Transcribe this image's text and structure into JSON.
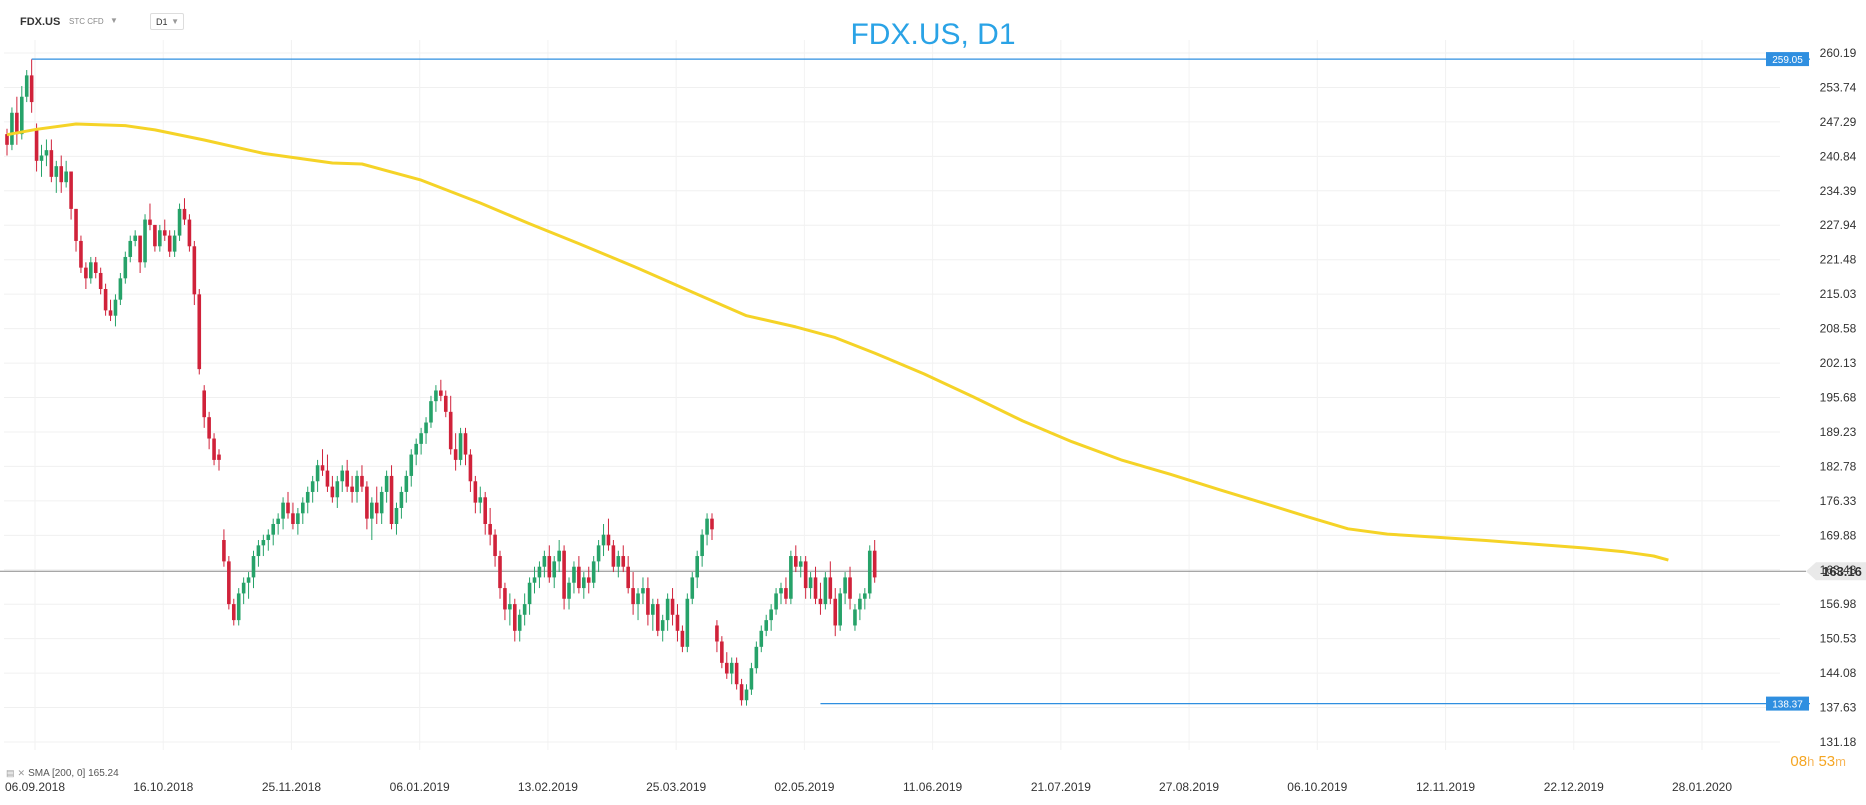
{
  "header": {
    "symbol": "FDX.US",
    "instrument_type": "STC CFD",
    "timeframe": "D1"
  },
  "title": "FDX.US, D1",
  "timer": {
    "hours": "08",
    "hours_unit": "h",
    "minutes": "53",
    "minutes_unit": "m"
  },
  "legend": {
    "label": "SMA [200, 0] 165.24"
  },
  "colors": {
    "up": "#26a269",
    "down": "#d0223a",
    "sma": "#f5d327",
    "hline": "#2f8fe0",
    "price_line": "#8a8a8a",
    "title": "#2aa3e6"
  },
  "chart_data": {
    "type": "candlestick",
    "title": "FDX.US, D1",
    "y_ticks": [
      "260.19",
      "253.74",
      "247.29",
      "240.84",
      "234.39",
      "227.94",
      "221.48",
      "215.03",
      "208.58",
      "202.13",
      "195.68",
      "189.23",
      "182.78",
      "176.33",
      "169.88",
      "163.43",
      "156.98",
      "150.53",
      "144.08",
      "137.63",
      "131.18"
    ],
    "ylim": [
      131.18,
      260.19
    ],
    "x_ticks": [
      "06.09.2018",
      "16.10.2018",
      "25.11.2018",
      "06.01.2019",
      "13.02.2019",
      "25.03.2019",
      "02.05.2019",
      "11.06.2019",
      "21.07.2019",
      "27.08.2019",
      "06.10.2019",
      "12.11.2019",
      "22.12.2019",
      "28.01.2020"
    ],
    "current_price": {
      "value": 163.16,
      "label": "163.16"
    },
    "horizontal_levels": [
      {
        "value": 259.05,
        "label": "259.05"
      },
      {
        "value": 138.37,
        "label": "138.37"
      }
    ],
    "sma": {
      "name": "SMA [200, 0]",
      "value": 165.24,
      "points": [
        [
          0,
          244.9
        ],
        [
          6,
          245.9
        ],
        [
          14,
          246.9
        ],
        [
          24,
          246.6
        ],
        [
          30,
          245.8
        ],
        [
          40,
          243.9
        ],
        [
          52,
          241.4
        ],
        [
          66,
          239.6
        ],
        [
          72,
          239.4
        ],
        [
          84,
          236.4
        ],
        [
          96,
          232.1
        ],
        [
          106,
          228.2
        ],
        [
          116,
          224.5
        ],
        [
          128,
          219.9
        ],
        [
          140,
          215.0
        ],
        [
          150,
          211.0
        ],
        [
          160,
          208.9
        ],
        [
          168,
          206.9
        ],
        [
          176,
          204.0
        ],
        [
          186,
          200.1
        ],
        [
          196,
          195.8
        ],
        [
          206,
          191.3
        ],
        [
          216,
          187.4
        ],
        [
          226,
          184.0
        ],
        [
          236,
          181.3
        ],
        [
          246,
          178.4
        ],
        [
          256,
          175.6
        ],
        [
          264,
          173.3
        ],
        [
          272,
          171.1
        ],
        [
          280,
          170.1
        ],
        [
          290,
          169.5
        ],
        [
          300,
          168.9
        ],
        [
          310,
          168.2
        ],
        [
          320,
          167.5
        ],
        [
          328,
          166.8
        ],
        [
          334,
          166.0
        ],
        [
          337,
          165.24
        ]
      ]
    },
    "candles": [
      [
        245,
        246,
        241,
        243
      ],
      [
        243,
        250,
        242,
        249
      ],
      [
        249,
        252,
        243,
        245
      ],
      [
        245,
        254,
        244,
        252
      ],
      [
        252,
        257,
        251,
        256
      ],
      [
        256,
        259,
        249,
        251
      ],
      [
        246,
        247,
        238,
        240
      ],
      [
        240,
        243,
        237,
        241
      ],
      [
        241,
        244,
        239,
        242
      ],
      [
        242,
        244,
        236,
        237
      ],
      [
        237,
        240,
        234,
        239
      ],
      [
        239,
        241,
        234,
        236
      ],
      [
        236,
        240,
        235,
        238
      ],
      [
        238,
        238,
        229,
        231
      ],
      [
        231,
        231,
        223,
        225
      ],
      [
        225,
        226,
        219,
        220
      ],
      [
        220,
        221,
        216,
        218
      ],
      [
        218,
        222,
        217,
        221
      ],
      [
        221,
        222,
        218,
        219
      ],
      [
        219,
        220,
        215,
        216
      ],
      [
        216,
        217,
        211,
        212
      ],
      [
        212,
        214,
        210,
        211
      ],
      [
        211,
        215,
        209,
        214
      ],
      [
        214,
        219,
        213,
        218
      ],
      [
        218,
        223,
        217,
        222
      ],
      [
        222,
        226,
        221,
        225
      ],
      [
        225,
        227,
        224,
        226
      ],
      [
        226,
        226,
        219,
        221
      ],
      [
        221,
        230,
        220,
        229
      ],
      [
        229,
        232,
        227,
        228
      ],
      [
        228,
        228,
        223,
        224
      ],
      [
        224,
        228,
        223,
        227
      ],
      [
        227,
        229,
        225,
        226
      ],
      [
        226,
        227,
        222,
        223
      ],
      [
        223,
        227,
        222,
        226
      ],
      [
        226,
        232,
        225,
        231
      ],
      [
        231,
        233,
        228,
        229
      ],
      [
        229,
        230,
        223,
        224
      ],
      [
        224,
        225,
        213,
        215
      ],
      [
        215,
        216,
        200,
        201
      ],
      [
        197,
        198,
        190,
        192
      ],
      [
        192,
        193,
        186,
        188
      ],
      [
        188,
        189,
        183,
        184
      ],
      [
        185,
        186,
        182,
        184
      ],
      [
        169,
        171,
        164,
        165
      ],
      [
        165,
        166,
        156,
        157
      ],
      [
        157,
        158,
        153,
        154
      ],
      [
        154,
        160,
        153,
        159
      ],
      [
        159,
        162,
        157,
        161
      ],
      [
        161,
        163,
        158,
        162
      ],
      [
        162,
        167,
        160,
        166
      ],
      [
        166,
        169,
        164,
        168
      ],
      [
        168,
        170,
        166,
        169
      ],
      [
        169,
        171,
        167,
        170
      ],
      [
        170,
        173,
        168,
        172
      ],
      [
        172,
        174,
        170,
        173
      ],
      [
        173,
        177,
        171,
        176
      ],
      [
        176,
        178,
        173,
        174
      ],
      [
        174,
        176,
        171,
        172
      ],
      [
        172,
        175,
        170,
        174
      ],
      [
        174,
        177,
        172,
        176
      ],
      [
        176,
        179,
        174,
        178
      ],
      [
        178,
        181,
        176,
        180
      ],
      [
        180,
        184,
        178,
        183
      ],
      [
        183,
        186,
        181,
        182
      ],
      [
        182,
        185,
        178,
        179
      ],
      [
        179,
        181,
        176,
        177
      ],
      [
        177,
        181,
        175,
        180
      ],
      [
        180,
        183,
        178,
        182
      ],
      [
        182,
        184,
        178,
        179
      ],
      [
        179,
        181,
        176,
        178
      ],
      [
        178,
        182,
        176,
        181
      ],
      [
        181,
        183,
        178,
        179
      ],
      [
        179,
        180,
        171,
        173
      ],
      [
        173,
        177,
        169,
        176
      ],
      [
        176,
        179,
        172,
        174
      ],
      [
        174,
        179,
        172,
        178
      ],
      [
        178,
        182,
        176,
        181
      ],
      [
        181,
        183,
        171,
        172
      ],
      [
        172,
        176,
        170,
        175
      ],
      [
        175,
        179,
        173,
        178
      ],
      [
        178,
        182,
        176,
        181
      ],
      [
        181,
        186,
        179,
        185
      ],
      [
        185,
        188,
        183,
        187
      ],
      [
        187,
        190,
        185,
        189
      ],
      [
        189,
        192,
        187,
        191
      ],
      [
        191,
        196,
        190,
        195
      ],
      [
        195,
        198,
        193,
        197
      ],
      [
        197,
        199,
        195,
        196
      ],
      [
        196,
        197,
        192,
        193
      ],
      [
        193,
        196,
        185,
        186
      ],
      [
        186,
        189,
        182,
        184
      ],
      [
        184,
        190,
        183,
        189
      ],
      [
        189,
        190,
        183,
        185
      ],
      [
        185,
        186,
        178,
        180
      ],
      [
        180,
        181,
        174,
        176
      ],
      [
        176,
        179,
        174,
        177
      ],
      [
        177,
        178,
        170,
        172
      ],
      [
        172,
        175,
        168,
        170
      ],
      [
        170,
        171,
        164,
        166
      ],
      [
        166,
        167,
        158,
        160
      ],
      [
        160,
        161,
        154,
        156
      ],
      [
        156,
        159,
        153,
        157
      ],
      [
        157,
        158,
        150,
        152
      ],
      [
        152,
        156,
        150,
        155
      ],
      [
        155,
        159,
        153,
        157
      ],
      [
        157,
        162,
        155,
        161
      ],
      [
        161,
        164,
        159,
        162
      ],
      [
        162,
        165,
        160,
        164
      ],
      [
        164,
        167,
        162,
        166
      ],
      [
        166,
        168,
        161,
        162
      ],
      [
        162,
        166,
        160,
        165
      ],
      [
        165,
        169,
        163,
        167
      ],
      [
        167,
        168,
        156,
        158
      ],
      [
        158,
        162,
        156,
        161
      ],
      [
        161,
        165,
        159,
        164
      ],
      [
        164,
        166,
        159,
        160
      ],
      [
        160,
        163,
        158,
        162
      ],
      [
        162,
        164,
        159,
        161
      ],
      [
        161,
        166,
        160,
        165
      ],
      [
        165,
        169,
        163,
        168
      ],
      [
        168,
        172,
        166,
        170
      ],
      [
        170,
        173,
        167,
        168
      ],
      [
        168,
        169,
        163,
        164
      ],
      [
        164,
        167,
        162,
        166
      ],
      [
        166,
        168,
        163,
        164
      ],
      [
        164,
        166,
        159,
        160
      ],
      [
        160,
        163,
        155,
        157
      ],
      [
        157,
        160,
        154,
        159
      ],
      [
        159,
        162,
        157,
        160
      ],
      [
        160,
        162,
        153,
        155
      ],
      [
        155,
        158,
        152,
        157
      ],
      [
        157,
        158,
        151,
        152
      ],
      [
        152,
        155,
        150,
        154
      ],
      [
        154,
        159,
        152,
        158
      ],
      [
        158,
        160,
        153,
        155
      ],
      [
        155,
        157,
        150,
        152
      ],
      [
        152,
        153,
        148,
        149
      ],
      [
        149,
        159,
        148,
        158
      ],
      [
        158,
        163,
        157,
        162
      ],
      [
        162,
        167,
        160,
        166
      ],
      [
        166,
        171,
        164,
        170
      ],
      [
        170,
        174,
        168,
        173
      ],
      [
        173,
        174,
        169,
        171
      ],
      [
        153,
        154,
        148,
        150
      ],
      [
        150,
        151,
        145,
        146
      ],
      [
        146,
        148,
        143,
        144
      ],
      [
        144,
        147,
        142,
        146
      ],
      [
        146,
        147,
        141,
        142
      ],
      [
        142,
        143,
        138,
        139
      ],
      [
        139,
        142,
        138,
        141
      ],
      [
        141,
        146,
        140,
        145
      ],
      [
        145,
        150,
        144,
        149
      ],
      [
        149,
        153,
        148,
        152
      ],
      [
        152,
        155,
        151,
        154
      ],
      [
        154,
        157,
        152,
        156
      ],
      [
        156,
        160,
        155,
        159
      ],
      [
        159,
        161,
        157,
        160
      ],
      [
        160,
        162,
        157,
        158
      ],
      [
        158,
        167,
        157,
        166
      ],
      [
        166,
        168,
        163,
        164
      ],
      [
        164,
        166,
        162,
        165
      ],
      [
        165,
        166,
        158,
        160
      ],
      [
        160,
        163,
        158,
        162
      ],
      [
        162,
        164,
        157,
        158
      ],
      [
        158,
        161,
        155,
        157
      ],
      [
        157,
        163,
        156,
        162
      ],
      [
        162,
        165,
        157,
        158
      ],
      [
        158,
        160,
        151,
        153
      ],
      [
        153,
        160,
        152,
        159
      ],
      [
        159,
        163,
        157,
        162
      ],
      [
        162,
        164,
        156,
        158
      ],
      [
        153,
        157,
        152,
        156
      ],
      [
        156,
        159,
        154,
        158
      ],
      [
        158,
        160,
        156,
        159
      ],
      [
        159,
        168,
        158,
        167
      ],
      [
        167,
        169,
        161,
        162
      ]
    ]
  }
}
